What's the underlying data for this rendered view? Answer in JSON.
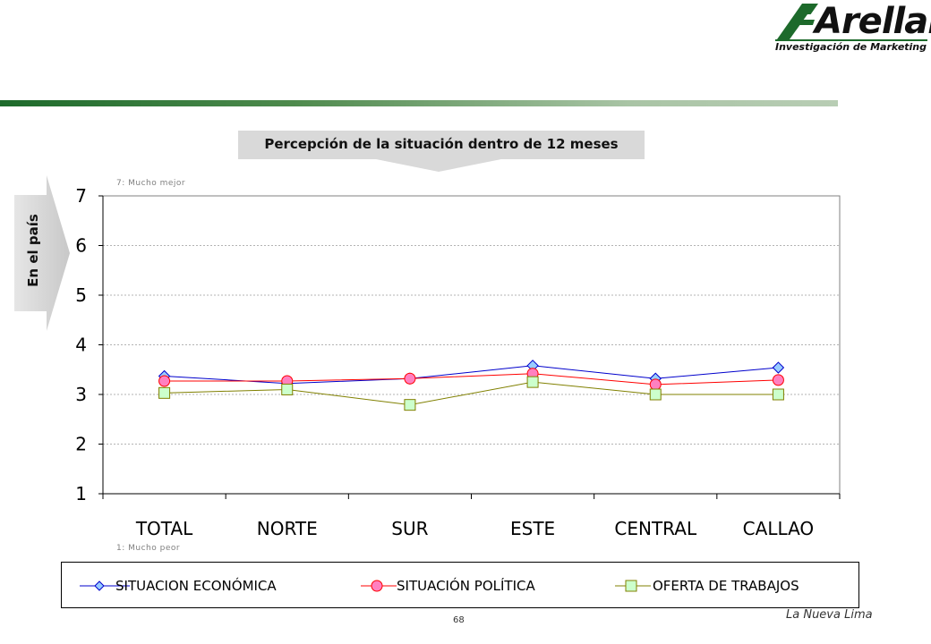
{
  "header": {
    "logo_name": "Arellano",
    "logo_tagline": "Investigación de Marketing"
  },
  "colors": {
    "brand_bar_start": "#1d6a2b",
    "brand_bar_end": "#b8cdb4",
    "title_box": "#d9d9d9"
  },
  "side_label": "En el país",
  "notes": {
    "top": "7: Mucho mejor",
    "bottom": "1: Mucho peor"
  },
  "chart_data": {
    "type": "line",
    "title": "Percepción de la situación dentro de 12 meses",
    "categories": [
      "TOTAL",
      "NORTE",
      "SUR",
      "ESTE",
      "CENTRAL",
      "CALLAO"
    ],
    "ylim": [
      1,
      7
    ],
    "yticks": [
      1,
      2,
      3,
      4,
      5,
      6,
      7
    ],
    "grid": true,
    "legend_position": "bottom",
    "series": [
      {
        "name": "SITUACION ECONÓMICA",
        "color": "#0000cc",
        "marker": "diamond",
        "marker_fill": "#99ccff",
        "values": [
          3.37,
          3.22,
          3.32,
          3.58,
          3.32,
          3.54
        ]
      },
      {
        "name": "SITUACIÓN POLÍTICA",
        "color": "#ff0000",
        "marker": "circle",
        "marker_fill": "#ff80c0",
        "values": [
          3.27,
          3.27,
          3.32,
          3.42,
          3.2,
          3.29
        ]
      },
      {
        "name": "OFERTA DE TRABAJOS",
        "color": "#808000",
        "marker": "square",
        "marker_fill": "#ccffcc",
        "values": [
          3.03,
          3.1,
          2.79,
          3.25,
          3.0,
          3.0
        ]
      }
    ]
  },
  "footer": {
    "page_number": "68",
    "right_text": "La Nueva Lima"
  }
}
